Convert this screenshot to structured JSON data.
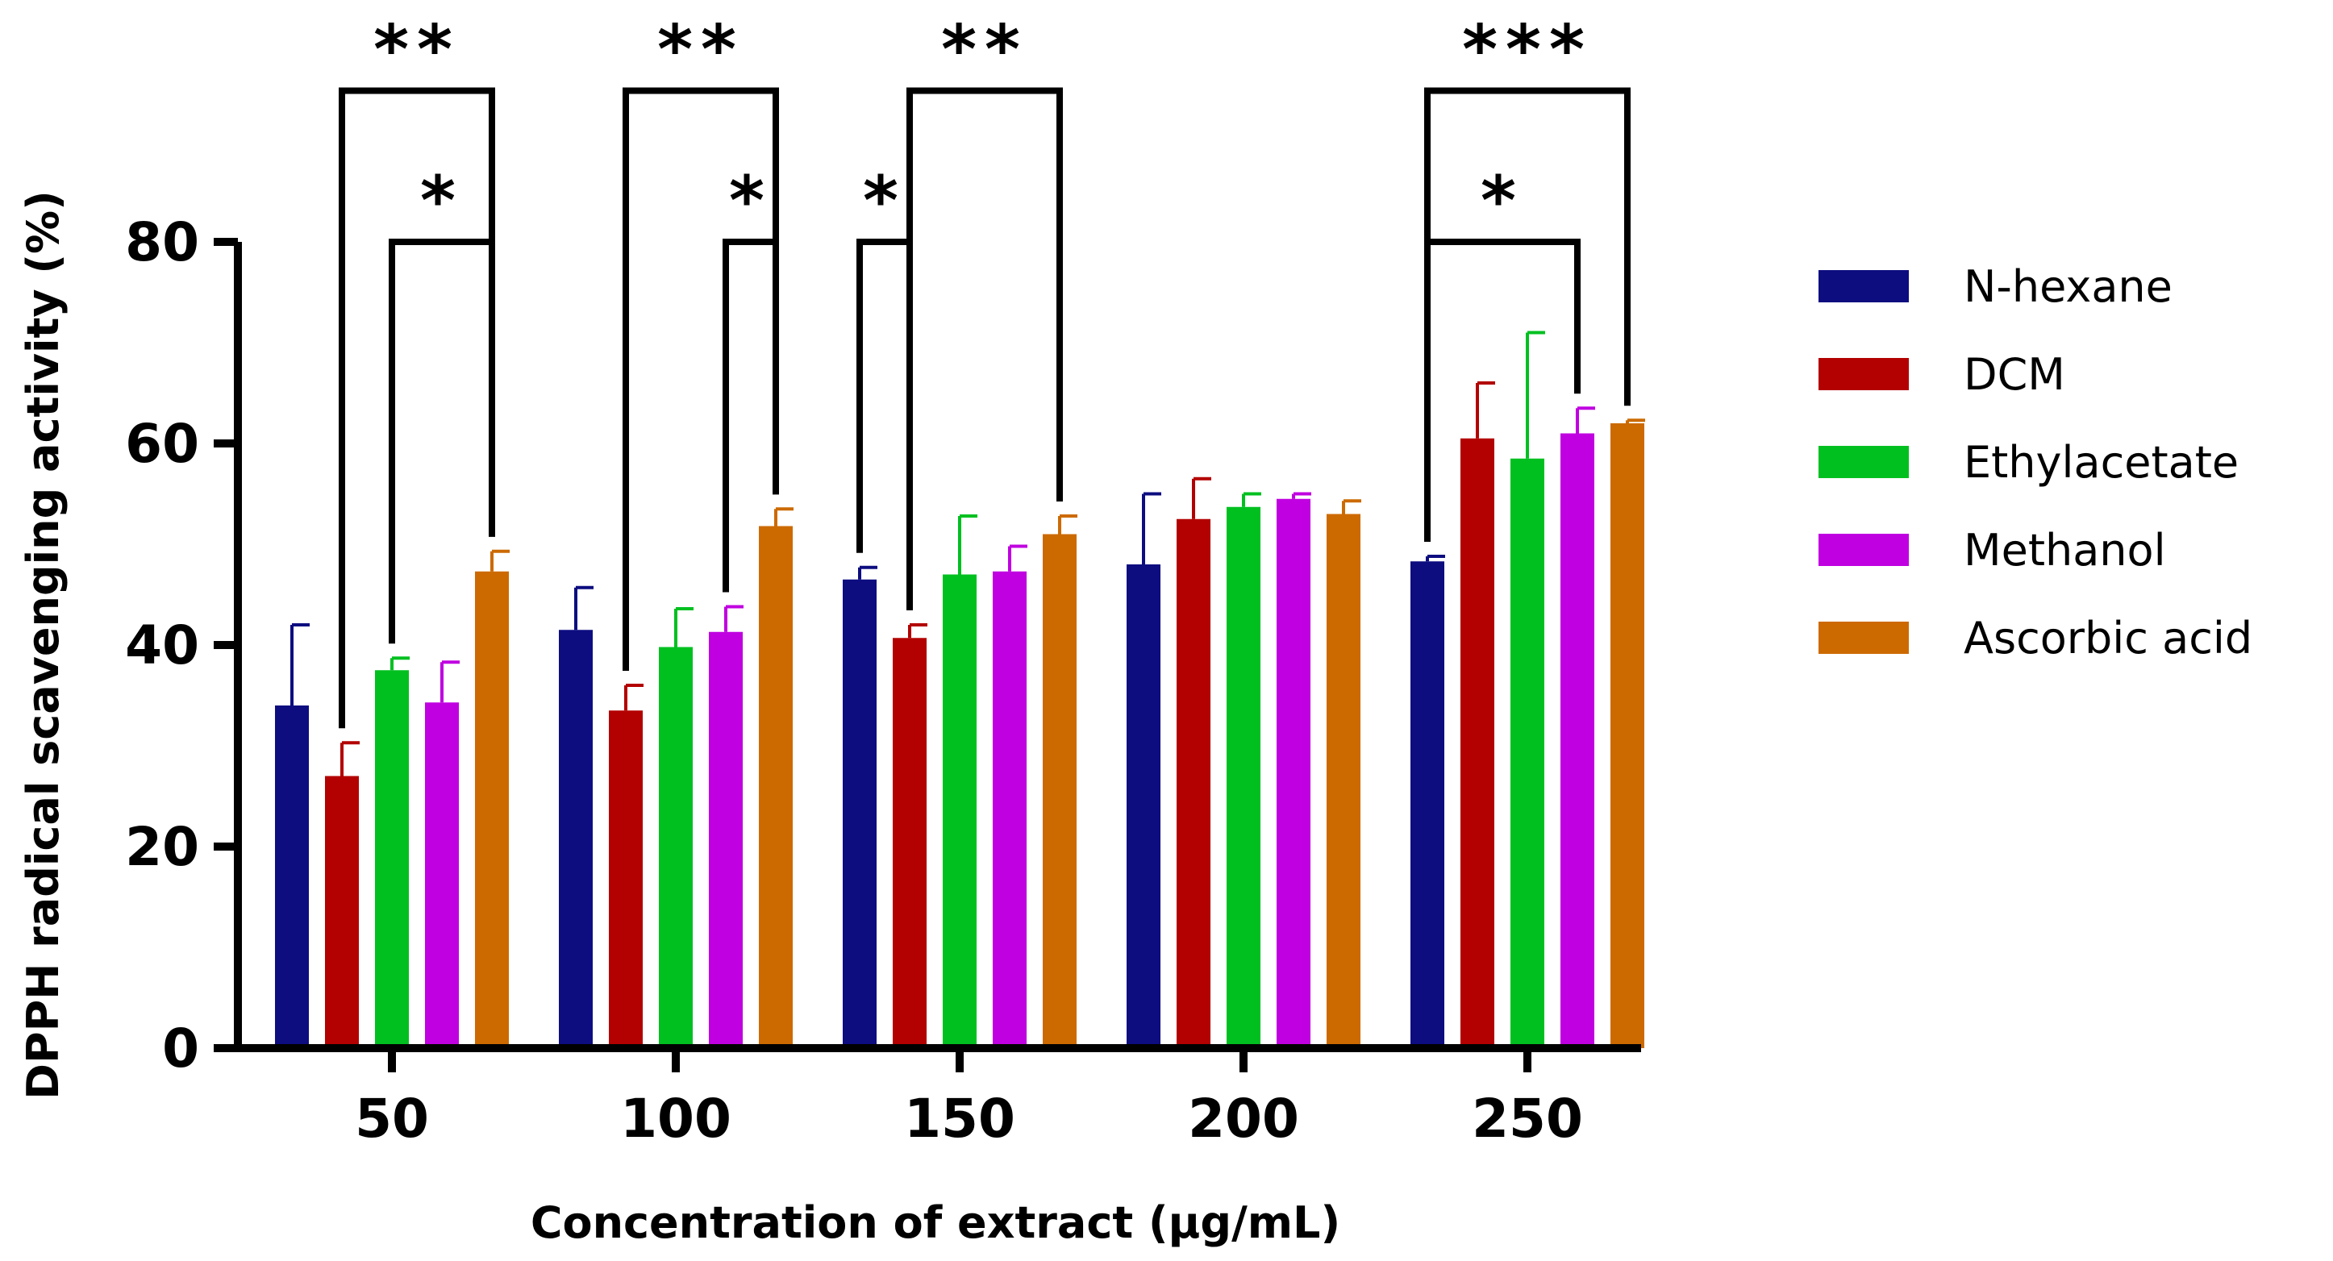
{
  "chart_data": {
    "type": "bar",
    "title": "",
    "xlabel": "Concentration of extract (µg/mL)",
    "ylabel": "DPPH radical scavenging activity (%)",
    "ylim": [
      0,
      80
    ],
    "yticks": [
      0,
      20,
      40,
      60,
      80
    ],
    "categories": [
      "50",
      "100",
      "150",
      "200",
      "250"
    ],
    "series": [
      {
        "name": "N-hexane",
        "color": "#0d0d80",
        "values": [
          34,
          41.5,
          46.5,
          48,
          48.3
        ],
        "errors": [
          8,
          4.2,
          1.2,
          7,
          0.5
        ]
      },
      {
        "name": "DCM",
        "color": "#b30000",
        "values": [
          27,
          33.5,
          40.7,
          52.5,
          60.5
        ],
        "errors": [
          3.3,
          2.5,
          1.3,
          4,
          5.5
        ]
      },
      {
        "name": "Ethylacetate",
        "color": "#00c020",
        "values": [
          37.5,
          39.8,
          47,
          53.7,
          58.5
        ],
        "errors": [
          1.2,
          3.8,
          5.8,
          1.3,
          12.5
        ]
      },
      {
        "name": "Methanol",
        "color": "#c000e0",
        "values": [
          34.3,
          41.3,
          47.3,
          54.5,
          61
        ],
        "errors": [
          4,
          2.5,
          2.5,
          0.5,
          2.5
        ]
      },
      {
        "name": "Ascorbic acid",
        "color": "#cc6a00",
        "values": [
          47.3,
          51.8,
          51,
          53,
          62
        ],
        "errors": [
          2,
          1.7,
          1.8,
          1.3,
          0.3
        ]
      }
    ],
    "significance": [
      {
        "category": "50",
        "from_series": 1,
        "to_series": 4,
        "label": "**",
        "y": 95
      },
      {
        "category": "50",
        "from_series": 2,
        "to_series": 4,
        "label": "*",
        "y": 80
      },
      {
        "category": "100",
        "from_series": 1,
        "to_series": 4,
        "label": "**",
        "y": 95
      },
      {
        "category": "100",
        "from_series": 3,
        "to_series": 4,
        "label": "*",
        "y": 80
      },
      {
        "category": "150",
        "from_series": 1,
        "to_series": 4,
        "label": "**",
        "y": 95
      },
      {
        "category": "150",
        "from_series": 0,
        "to_series": 1,
        "label": "*",
        "y": 80
      },
      {
        "category": "250",
        "from_series": 0,
        "to_series": 4,
        "label": "***",
        "y": 95
      },
      {
        "category": "250",
        "from_series": 0,
        "to_series": 3,
        "label": "*",
        "y": 80
      }
    ],
    "legend_position": "right",
    "grid": false
  }
}
